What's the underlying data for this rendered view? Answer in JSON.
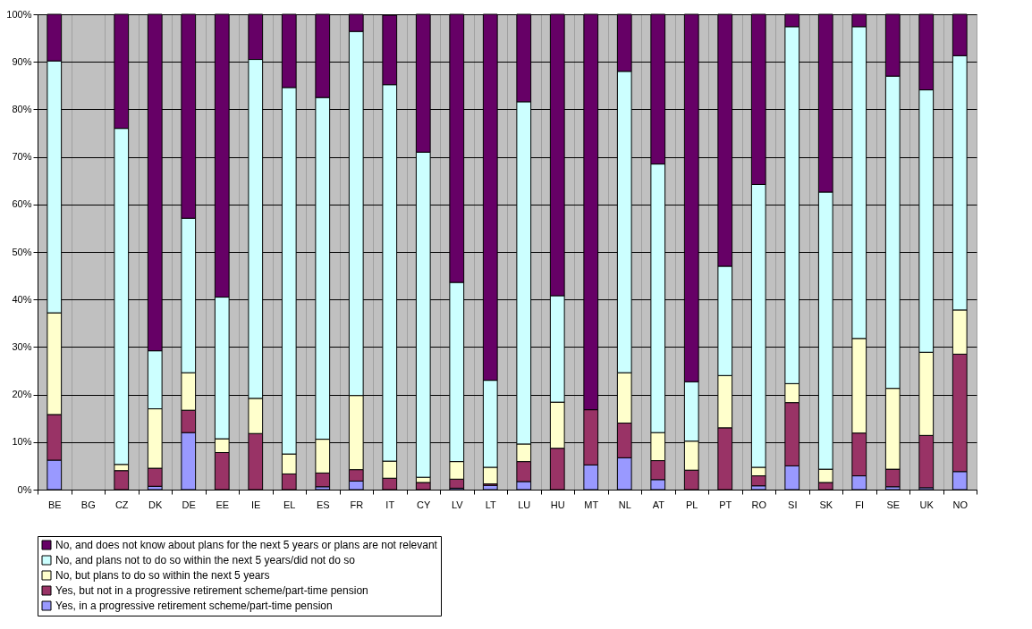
{
  "chart_data": {
    "type": "bar",
    "stacked": true,
    "legend": "bottom",
    "grid": true,
    "categories": [
      "BE",
      "BG",
      "CZ",
      "DK",
      "DE",
      "EE",
      "IE",
      "EL",
      "ES",
      "FR",
      "IT",
      "CY",
      "LV",
      "LT",
      "LU",
      "HU",
      "MT",
      "NL",
      "AT",
      "PL",
      "PT",
      "RO",
      "SI",
      "SK",
      "FI",
      "SE",
      "UK",
      "NO"
    ],
    "ylim": [
      0,
      100
    ],
    "yticks": [
      {
        "value": 0,
        "label": "0%"
      },
      {
        "value": 10,
        "label": "10%"
      },
      {
        "value": 20,
        "label": "20%"
      },
      {
        "value": 30,
        "label": "30%"
      },
      {
        "value": 40,
        "label": "40%"
      },
      {
        "value": 50,
        "label": "50%"
      },
      {
        "value": 60,
        "label": "60%"
      },
      {
        "value": 70,
        "label": "70%"
      },
      {
        "value": 80,
        "label": "80%"
      },
      {
        "value": 90,
        "label": "90%"
      },
      {
        "value": 100,
        "label": "100%"
      }
    ],
    "series": [
      {
        "name": "Yes, in a progressive retirement scheme/part-time pension",
        "color": "#9999ff",
        "values": [
          6.2,
          null,
          0,
          0.7,
          12,
          0,
          0,
          0,
          0.6,
          1.8,
          null,
          0,
          0.3,
          0.9,
          1.7,
          0,
          5.2,
          6.7,
          2.1,
          0,
          0,
          0.8,
          5,
          0,
          2.9,
          0.6,
          0.4,
          3.8
        ]
      },
      {
        "name": "Yes, but not in a progressive retirement scheme/part-time pension",
        "color": "#993366",
        "values": [
          9.6,
          null,
          4,
          3.8,
          4.7,
          7.8,
          11.8,
          3.3,
          2.9,
          2.4,
          2.4,
          1.5,
          1.9,
          0.3,
          4.2,
          8.7,
          11.6,
          7.3,
          4,
          4.1,
          13,
          2.1,
          13.3,
          1.5,
          9,
          3.7,
          11,
          24.7
        ]
      },
      {
        "name": "No, but plans to do so within the next 5 years",
        "color": "#ffffcc",
        "values": [
          21.4,
          null,
          1.3,
          12.5,
          7.9,
          2.9,
          7.4,
          4.2,
          7.1,
          15.6,
          3.6,
          1.1,
          3.7,
          3.5,
          3.7,
          9.7,
          0,
          10.6,
          5.9,
          6.1,
          11,
          1.8,
          4,
          2.8,
          19.9,
          17,
          17.5,
          9.3
        ]
      },
      {
        "name": "No, and plans not to do so within the next 5 years/did not do so",
        "color": "#ccffff",
        "values": [
          53,
          null,
          70.7,
          12.2,
          32.5,
          29.8,
          71.3,
          77.1,
          71.9,
          76.6,
          79.2,
          68.4,
          37.7,
          18.3,
          72,
          22.4,
          0,
          63.4,
          56.5,
          12.5,
          23,
          59.5,
          75.1,
          58.3,
          65.6,
          65.7,
          55.2,
          53.5
        ]
      },
      {
        "name": "No, and does not know about plans for the next 5 years or plans are not relevant",
        "color": "#660066",
        "values": [
          9.8,
          null,
          24,
          70.8,
          42.9,
          59.5,
          9.5,
          15.4,
          17.5,
          3.6,
          14.6,
          29,
          56.4,
          77,
          18.4,
          59.2,
          83.2,
          12,
          31.5,
          77.3,
          53,
          35.8,
          2.6,
          37.4,
          2.6,
          13,
          15.9,
          8.7
        ]
      }
    ]
  }
}
